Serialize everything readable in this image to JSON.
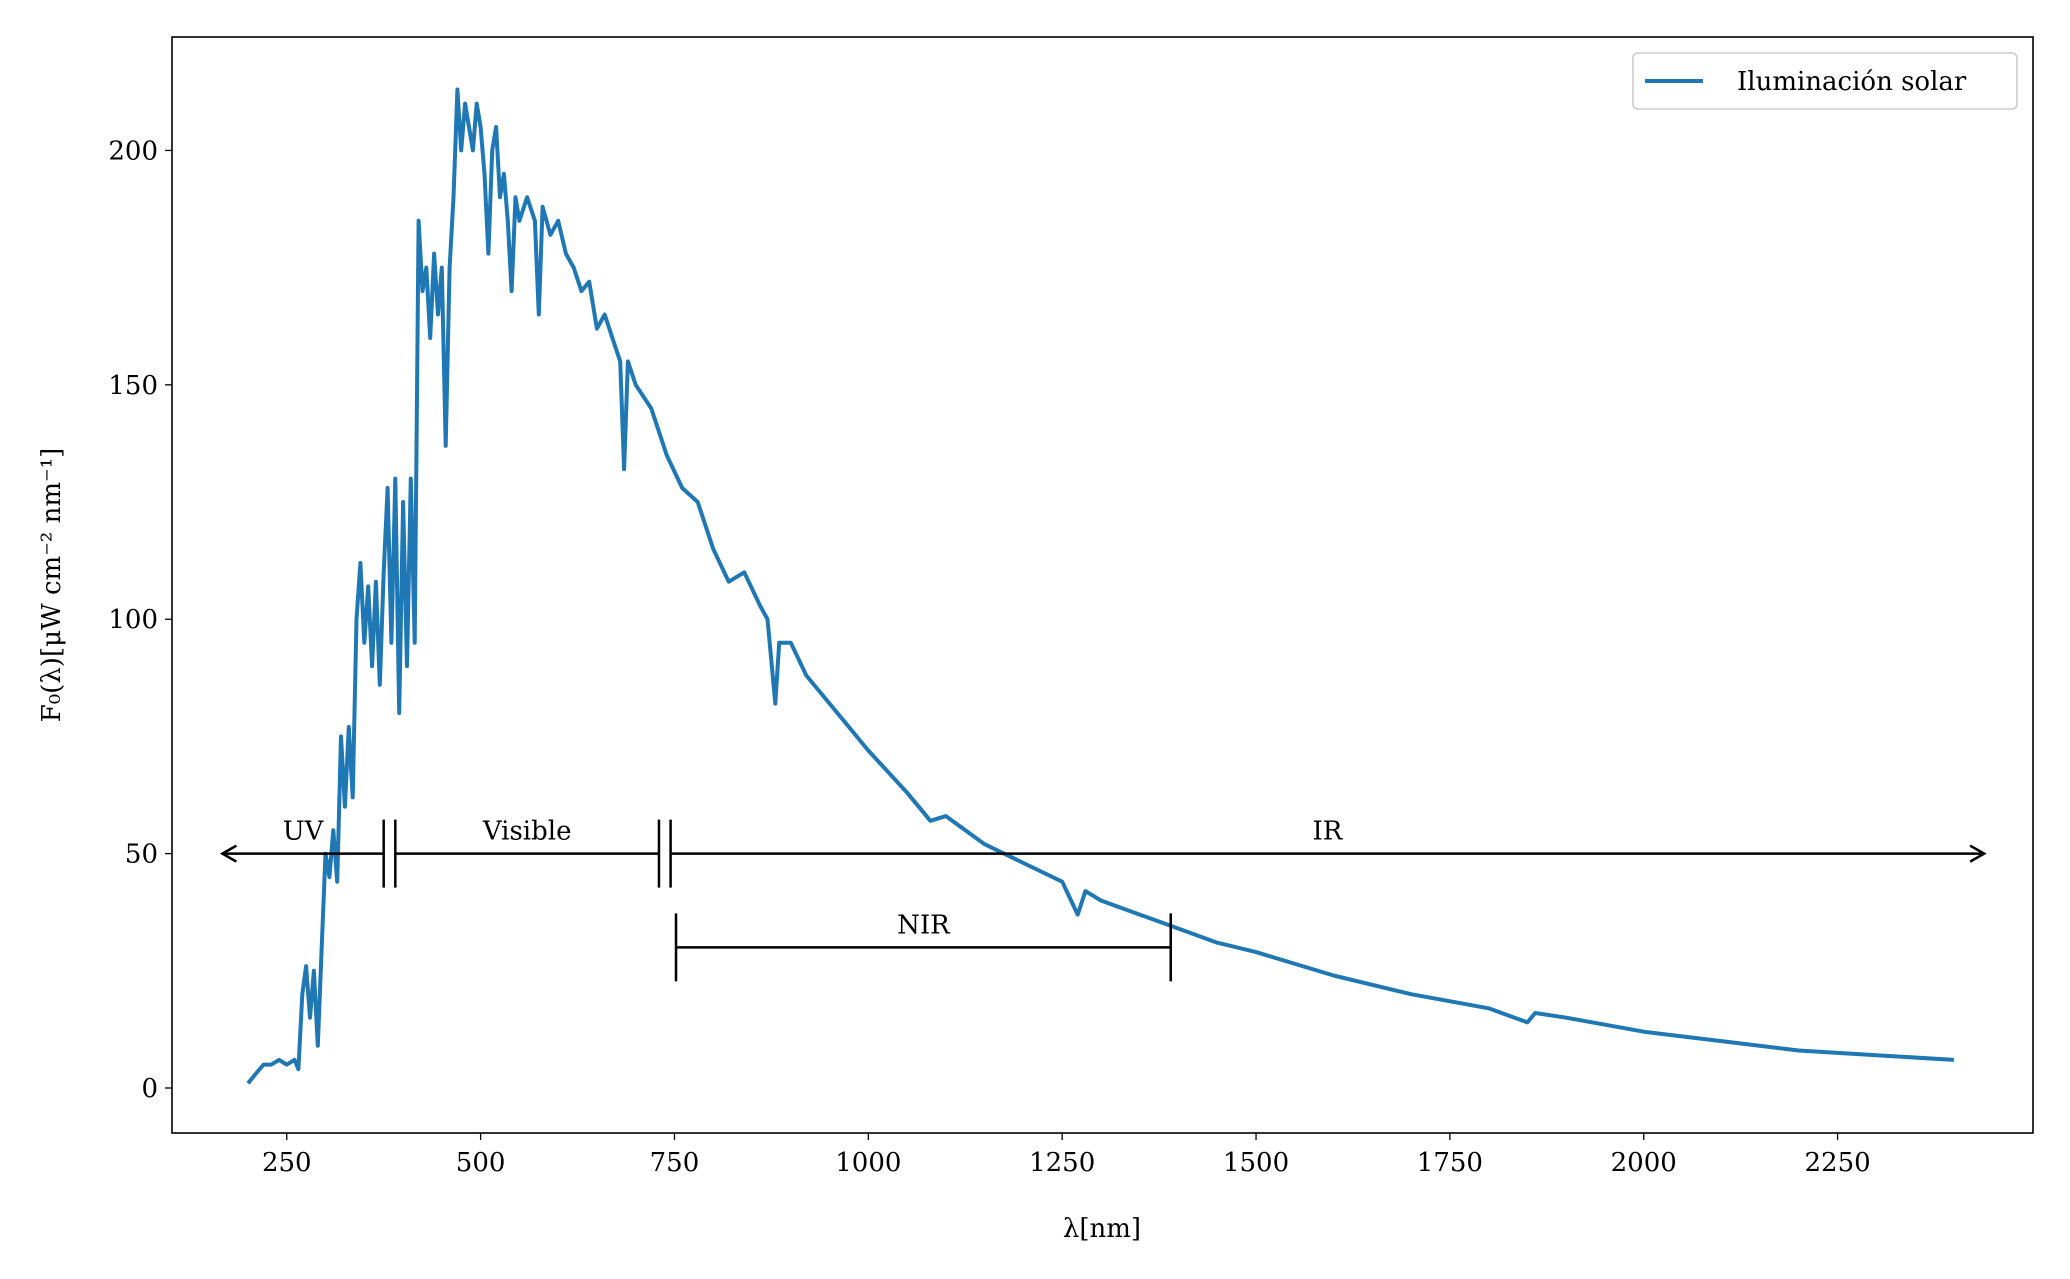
{
  "chart_data": {
    "type": "line",
    "x_label": "λ[nm]",
    "y_label": "F₀(λ)[μW cm⁻² nm⁻¹]",
    "x": [
      200,
      210,
      220,
      230,
      240,
      250,
      260,
      265,
      270,
      275,
      280,
      285,
      290,
      295,
      300,
      305,
      310,
      315,
      320,
      325,
      330,
      335,
      340,
      345,
      350,
      355,
      360,
      365,
      370,
      375,
      380,
      385,
      390,
      395,
      400,
      405,
      410,
      415,
      420,
      425,
      430,
      435,
      440,
      445,
      450,
      455,
      460,
      465,
      470,
      475,
      480,
      485,
      490,
      495,
      500,
      505,
      510,
      515,
      520,
      525,
      530,
      535,
      540,
      545,
      550,
      560,
      570,
      575,
      580,
      590,
      600,
      610,
      620,
      630,
      640,
      650,
      660,
      670,
      680,
      685,
      690,
      700,
      720,
      740,
      760,
      780,
      800,
      820,
      840,
      860,
      870,
      880,
      885,
      900,
      920,
      950,
      1000,
      1050,
      1080,
      1100,
      1150,
      1200,
      1250,
      1270,
      1280,
      1300,
      1350,
      1400,
      1450,
      1500,
      1600,
      1700,
      1800,
      1850,
      1860,
      1900,
      2000,
      2100,
      2200,
      2300,
      2400
    ],
    "series": [
      {
        "name": "Iluminación solar",
        "color": "#1f77b4",
        "values": [
          1,
          3,
          5,
          5,
          6,
          5,
          6,
          4,
          20,
          26,
          15,
          25,
          9,
          30,
          50,
          45,
          55,
          44,
          75,
          60,
          77,
          62,
          100,
          112,
          95,
          107,
          90,
          108,
          86,
          110,
          128,
          95,
          130,
          80,
          125,
          90,
          130,
          95,
          185,
          170,
          175,
          160,
          178,
          165,
          175,
          137,
          175,
          190,
          213,
          200,
          210,
          205,
          200,
          210,
          205,
          195,
          178,
          200,
          205,
          190,
          195,
          185,
          170,
          190,
          185,
          190,
          185,
          165,
          188,
          182,
          185,
          178,
          175,
          170,
          172,
          162,
          165,
          160,
          155,
          132,
          155,
          150,
          145,
          135,
          128,
          125,
          115,
          108,
          110,
          103,
          100,
          82,
          95,
          95,
          88,
          82,
          72,
          63,
          57,
          58,
          52,
          48,
          44,
          37,
          42,
          40,
          37,
          34,
          31,
          29,
          24,
          20,
          17,
          14,
          16,
          15,
          12,
          10,
          8,
          7,
          6
        ]
      }
    ],
    "xlim": [
      102,
      2502
    ],
    "ylim": [
      -9.6,
      224.2
    ],
    "xticks": [
      250,
      500,
      750,
      1000,
      1250,
      1500,
      1750,
      2000,
      2250
    ],
    "yticks": [
      0,
      50,
      100,
      150,
      200
    ],
    "legend": "upper right",
    "annotations": [
      {
        "text": "UV",
        "start": 375,
        "end": 167,
        "y": 50,
        "ends": [
          "bar",
          "arrow"
        ]
      },
      {
        "text": "Visible",
        "start": 390,
        "end": 730,
        "y": 50,
        "ends": [
          "bar",
          "bar"
        ]
      },
      {
        "text": "IR",
        "start": 745,
        "end": 2439,
        "y": 50,
        "ends": [
          "bar",
          "arrow"
        ]
      },
      {
        "text": "NIR",
        "start": 752,
        "end": 1390,
        "y": 30,
        "ends": [
          "bar",
          "bar"
        ]
      }
    ]
  }
}
